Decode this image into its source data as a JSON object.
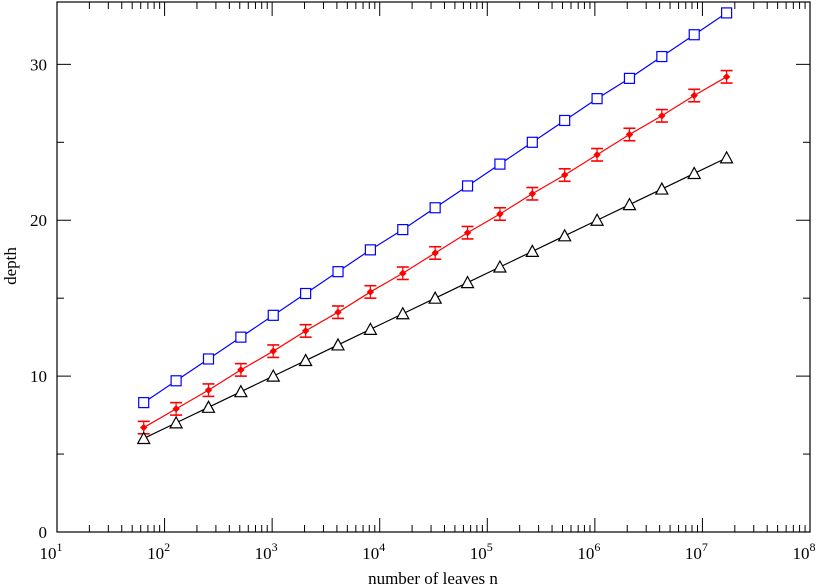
{
  "chart_data": {
    "type": "line",
    "xlabel": "number of leaves n",
    "ylabel": "depth",
    "xscale": "log10",
    "xlim": [
      10,
      100000000
    ],
    "ylim": [
      0,
      34
    ],
    "x_tick_labels": [
      {
        "base": "10",
        "exp": "1"
      },
      {
        "base": "10",
        "exp": "2"
      },
      {
        "base": "10",
        "exp": "3"
      },
      {
        "base": "10",
        "exp": "4"
      },
      {
        "base": "10",
        "exp": "5"
      },
      {
        "base": "10",
        "exp": "6"
      },
      {
        "base": "10",
        "exp": "7"
      },
      {
        "base": "10",
        "exp": "8"
      }
    ],
    "y_tick_labels": [
      "0",
      "10",
      "20",
      "30"
    ],
    "x": [
      64,
      128,
      256,
      512,
      1024,
      2048,
      4096,
      8192,
      16384,
      32768,
      65536,
      131072,
      262144,
      524288,
      1048576,
      2097152,
      4194304,
      8388608,
      16777216
    ],
    "series": [
      {
        "marker": "square",
        "color": "#0000ff",
        "values": [
          8.3,
          9.7,
          11.1,
          12.5,
          13.9,
          15.3,
          16.7,
          18.1,
          19.4,
          20.8,
          22.2,
          23.6,
          25.0,
          26.4,
          27.8,
          29.1,
          30.5,
          31.9,
          33.3
        ]
      },
      {
        "marker": "diamond-errorbar",
        "color": "#ff0000",
        "values": [
          6.7,
          7.9,
          9.1,
          10.4,
          11.6,
          12.9,
          14.1,
          15.4,
          16.6,
          17.9,
          19.2,
          20.4,
          21.7,
          22.9,
          24.2,
          25.5,
          26.7,
          28.0,
          29.2
        ],
        "errors": [
          0.4,
          0.4,
          0.4,
          0.4,
          0.4,
          0.4,
          0.4,
          0.4,
          0.4,
          0.4,
          0.4,
          0.4,
          0.4,
          0.4,
          0.4,
          0.4,
          0.4,
          0.4,
          0.4
        ]
      },
      {
        "marker": "triangle",
        "color": "#000000",
        "values": [
          6,
          7,
          8,
          9,
          10,
          11,
          12,
          13,
          14,
          15,
          16,
          17,
          18,
          19,
          20,
          21,
          22,
          23,
          24
        ]
      }
    ],
    "grid": false,
    "legend": "none"
  }
}
